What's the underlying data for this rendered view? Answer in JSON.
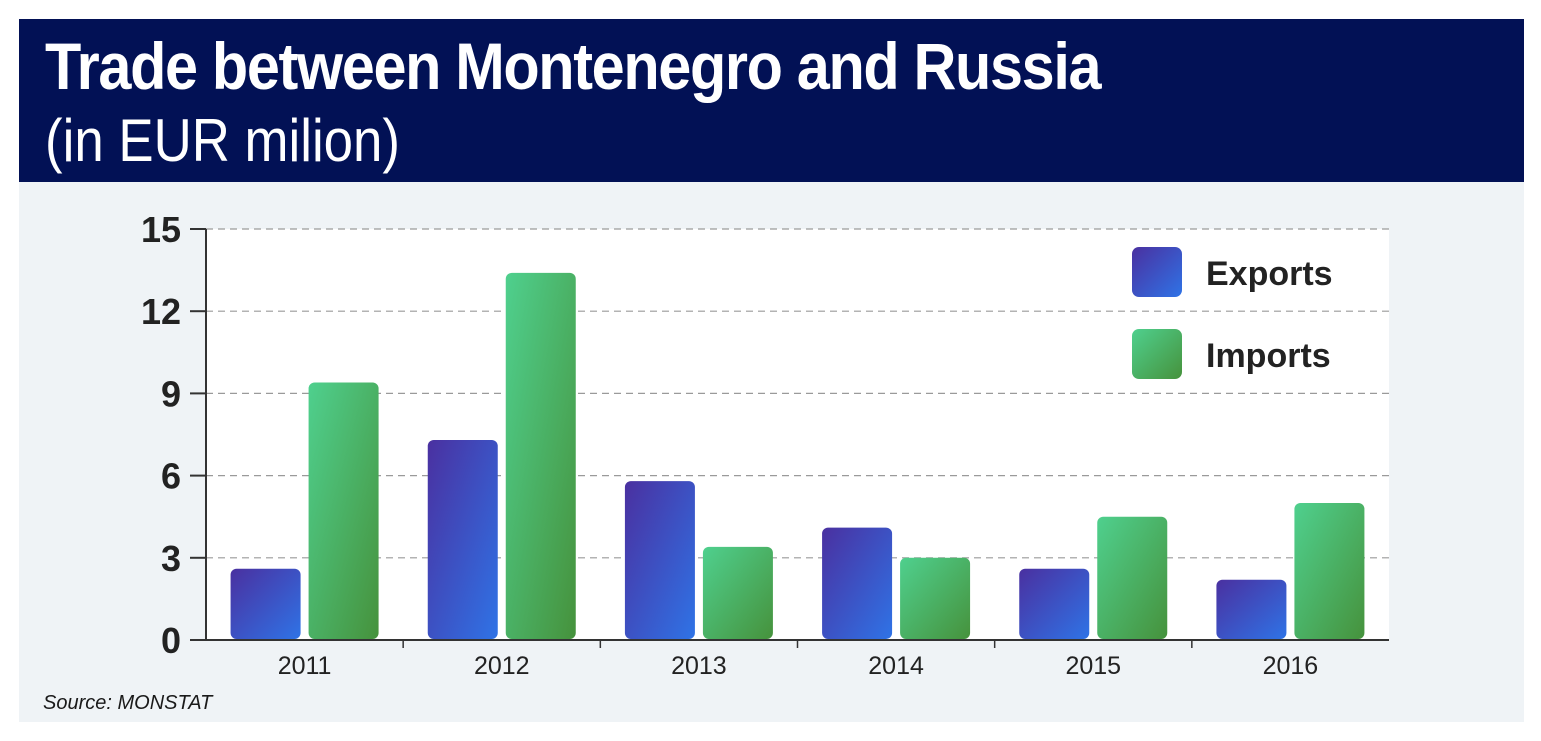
{
  "header": {
    "title": "Trade between Montenegro and Russia",
    "subtitle": "(in EUR milion)"
  },
  "source": "Source: MONSTAT",
  "colors": {
    "banner": "#021155",
    "exports_top": "#4a30a0",
    "exports_bottom": "#2f73e6",
    "imports_top": "#4fd08e",
    "imports_bottom": "#46923c"
  },
  "chart_data": {
    "type": "bar",
    "categories": [
      "2011",
      "2012",
      "2013",
      "2014",
      "2015",
      "2016"
    ],
    "series": [
      {
        "name": "Exports",
        "values": [
          2.6,
          7.3,
          5.8,
          4.1,
          2.6,
          2.2
        ]
      },
      {
        "name": "Imports",
        "values": [
          9.4,
          13.4,
          3.4,
          3.0,
          4.5,
          5.0
        ]
      }
    ],
    "yticks": [
      "0",
      "3",
      "6",
      "9",
      "12",
      "15"
    ],
    "ylim": [
      0,
      15
    ],
    "grid": true,
    "legend": "top-right"
  }
}
